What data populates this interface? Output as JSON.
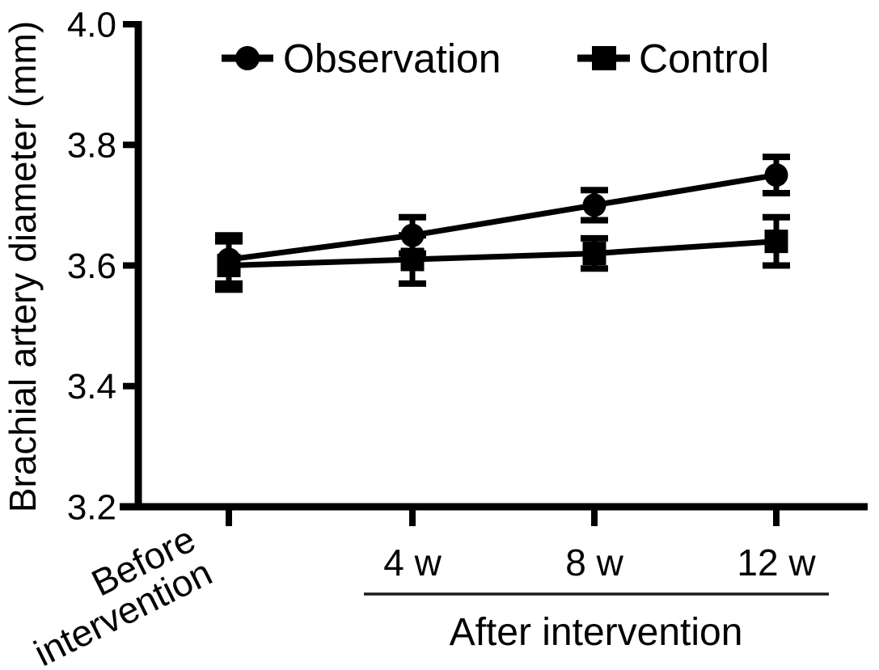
{
  "figure": {
    "background": "#ffffff",
    "ink_color": "#000000"
  },
  "chart_data": {
    "type": "line",
    "title": "",
    "ylabel": "Brachial artery diameter (mm)",
    "xlabel": "",
    "after_group_label": "After intervention",
    "categories": [
      "Before intervention",
      "4 w",
      "8 w",
      "12 w"
    ],
    "after_group_categories": [
      "4 w",
      "8 w",
      "12 w"
    ],
    "ytick_labels": [
      "3.2",
      "3.4",
      "3.6",
      "3.8",
      "4.0"
    ],
    "yticks": [
      3.2,
      3.4,
      3.6,
      3.8,
      4.0
    ],
    "ylim": [
      3.2,
      4.0
    ],
    "grid": false,
    "legend_position": "top-inside",
    "error_bars": true,
    "color": "#000000",
    "series": [
      {
        "name": "Observation",
        "marker": "circle",
        "values": [
          3.61,
          3.65,
          3.7,
          3.75
        ],
        "errors": [
          0.04,
          0.03,
          0.025,
          0.03
        ]
      },
      {
        "name": "Control",
        "marker": "square",
        "values": [
          3.6,
          3.61,
          3.62,
          3.64
        ],
        "errors": [
          0.04,
          0.04,
          0.025,
          0.04
        ]
      }
    ]
  }
}
